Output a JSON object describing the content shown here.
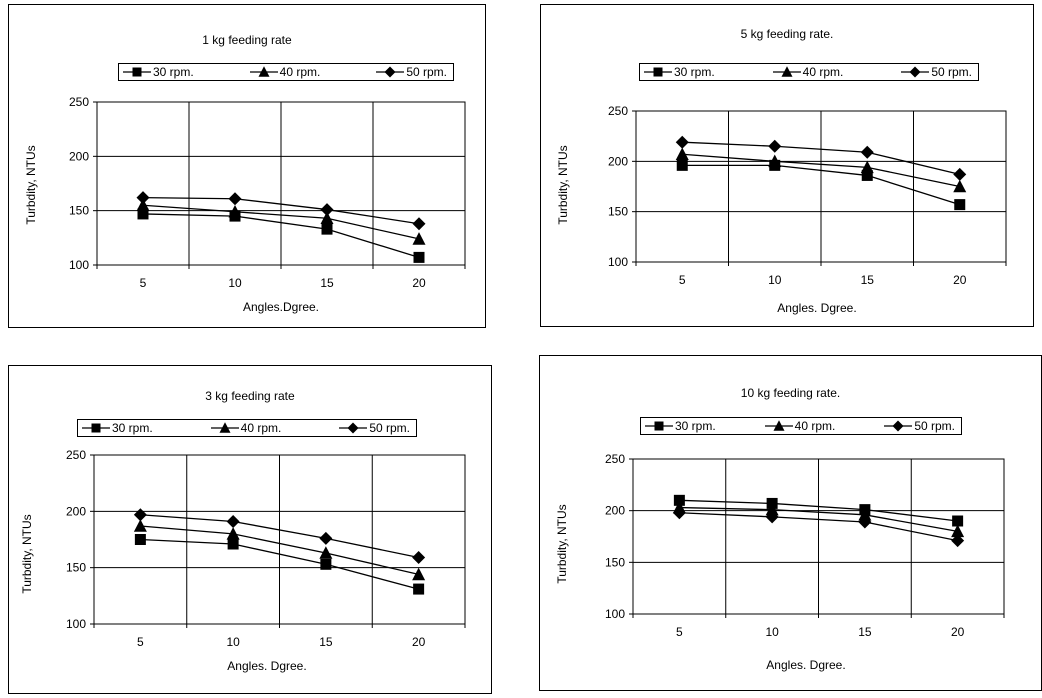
{
  "chart_data": [
    {
      "type": "line",
      "title": "1 kg feeding rate",
      "xlabel": "Angles.Dgree.",
      "ylabel": "Turbdity, NTUs",
      "categories": [
        "5",
        "10",
        "15",
        "20"
      ],
      "ylim": [
        100,
        250
      ],
      "yticks": [
        100,
        150,
        200,
        250
      ],
      "legend_position": "top",
      "grid": true,
      "series": [
        {
          "name": "30 rpm.",
          "marker": "square",
          "values": [
            147,
            145,
            133,
            107
          ]
        },
        {
          "name": "40 rpm.",
          "marker": "triangle",
          "values": [
            155,
            149,
            143,
            124
          ]
        },
        {
          "name": "50 rpm.",
          "marker": "diamond",
          "values": [
            162,
            161,
            151,
            138
          ]
        }
      ]
    },
    {
      "type": "line",
      "title": "5 kg feeding rate.",
      "xlabel": "Angles. Dgree.",
      "ylabel": "Turbdity, NTUs",
      "categories": [
        "5",
        "10",
        "15",
        "20"
      ],
      "ylim": [
        100,
        250
      ],
      "yticks": [
        100,
        150,
        200,
        250
      ],
      "legend_position": "top",
      "grid": true,
      "series": [
        {
          "name": "30 rpm.",
          "marker": "square",
          "values": [
            196,
            196,
            186,
            157
          ]
        },
        {
          "name": "40 rpm.",
          "marker": "triangle",
          "values": [
            207,
            200,
            194,
            175
          ]
        },
        {
          "name": "50 rpm.",
          "marker": "diamond",
          "values": [
            219,
            215,
            209,
            187
          ]
        }
      ]
    },
    {
      "type": "line",
      "title": "3 kg feeding rate",
      "xlabel": "Angles. Dgree.",
      "ylabel": "Turbdity, NTUs",
      "categories": [
        "5",
        "10",
        "15",
        "20"
      ],
      "ylim": [
        100,
        250
      ],
      "yticks": [
        100,
        150,
        200,
        250
      ],
      "legend_position": "top",
      "grid": true,
      "series": [
        {
          "name": "30 rpm.",
          "marker": "square",
          "values": [
            175,
            171,
            153,
            131
          ]
        },
        {
          "name": "40 rpm.",
          "marker": "triangle",
          "values": [
            187,
            180,
            163,
            144
          ]
        },
        {
          "name": "50 rpm.",
          "marker": "diamond",
          "values": [
            197,
            191,
            176,
            159
          ]
        }
      ]
    },
    {
      "type": "line",
      "title": "10 kg feeding rate.",
      "xlabel": "Angles. Dgree.",
      "ylabel": "Turbdity, NTUs",
      "categories": [
        "5",
        "10",
        "15",
        "20"
      ],
      "ylim": [
        100,
        250
      ],
      "yticks": [
        100,
        150,
        200,
        250
      ],
      "legend_position": "top",
      "grid": true,
      "series": [
        {
          "name": "30 rpm.",
          "marker": "square",
          "values": [
            210,
            207,
            201,
            190
          ]
        },
        {
          "name": "40 rpm.",
          "marker": "triangle",
          "values": [
            203,
            201,
            196,
            180
          ]
        },
        {
          "name": "50 rpm.",
          "marker": "diamond",
          "values": [
            198,
            194,
            189,
            171
          ]
        }
      ]
    }
  ],
  "colors": {
    "line": "#000000",
    "background": "#ffffff"
  }
}
